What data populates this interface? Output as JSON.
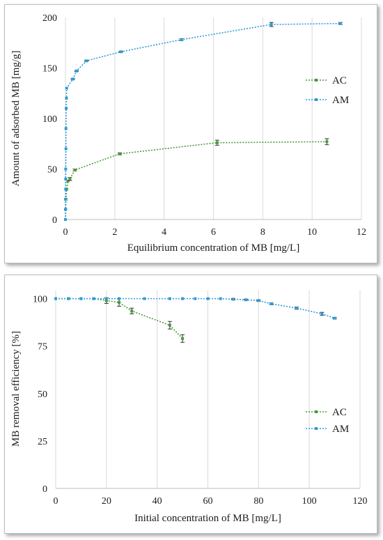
{
  "chart_data": [
    {
      "type": "scatter",
      "xlabel": "Equilibrium  concentration of MB [mg/L]",
      "ylabel": "Amount of adsorbed MB [mg/g]",
      "xlim": [
        0,
        12
      ],
      "ylim": [
        0,
        200
      ],
      "x_ticks": [
        "0",
        "2",
        "4",
        "6",
        "8",
        "10",
        "12"
      ],
      "y_ticks": [
        "0",
        "50",
        "100",
        "150",
        "200"
      ],
      "grid": "vertical",
      "legend_position": "right",
      "series": [
        {
          "name": "AC",
          "color": "#4a9a3c",
          "x": [
            0.0,
            0.01,
            0.02,
            0.05,
            0.1,
            0.18,
            0.38,
            2.2,
            6.15,
            10.6
          ],
          "y": [
            0,
            10,
            20,
            30,
            38,
            40,
            49,
            65,
            76,
            77
          ],
          "err": [
            0,
            0,
            0,
            0,
            0,
            1.5,
            1,
            1,
            2.5,
            3
          ]
        },
        {
          "name": "AM",
          "color": "#2e9bd6",
          "x": [
            0.0,
            0.0,
            0.0,
            0.01,
            0.01,
            0.01,
            0.02,
            0.02,
            0.03,
            0.04,
            0.05,
            0.3,
            0.45,
            0.85,
            2.25,
            4.7,
            8.35,
            11.15
          ],
          "y": [
            0,
            10,
            20,
            30,
            40,
            50,
            70,
            90,
            110,
            120,
            130,
            139,
            147,
            157,
            166,
            178,
            193,
            194
          ],
          "err": [
            0,
            0,
            0,
            0,
            0,
            0,
            0,
            0,
            0,
            0,
            0,
            0.5,
            0.5,
            0.5,
            0.5,
            1,
            2,
            1
          ]
        }
      ]
    },
    {
      "type": "scatter",
      "xlabel": "Initial concentration of MB [mg/L]",
      "ylabel": "MB removal efficiency  [%]",
      "xlim": [
        0,
        120
      ],
      "ylim": [
        0,
        105
      ],
      "x_ticks": [
        "0",
        "20",
        "40",
        "60",
        "80",
        "100",
        "120"
      ],
      "y_ticks": [
        "0",
        "25",
        "50",
        "75",
        "100"
      ],
      "grid": "vertical",
      "legend_position": "right",
      "series": [
        {
          "name": "AC",
          "color": "#4a9a3c",
          "x": [
            0,
            5,
            10,
            15,
            20,
            25,
            30,
            45,
            50
          ],
          "y": [
            100,
            100,
            100,
            100,
            99,
            98,
            93.5,
            86,
            79
          ],
          "err": [
            0,
            0,
            0,
            0,
            1.5,
            2,
            1.5,
            2,
            2
          ]
        },
        {
          "name": "AM",
          "color": "#2e9bd6",
          "x": [
            0,
            5,
            10,
            15,
            20,
            25,
            35,
            45,
            50,
            55,
            60,
            65,
            70,
            75,
            80,
            85,
            95,
            105,
            110
          ],
          "y": [
            100,
            100,
            100,
            100,
            100,
            100,
            100,
            100,
            100,
            100,
            100,
            100,
            99.7,
            99.4,
            99,
            97.3,
            95,
            92,
            89.7
          ],
          "err": [
            0,
            0,
            0,
            0,
            0,
            0,
            0,
            0,
            0,
            0,
            0,
            0,
            0.3,
            0.3,
            0.4,
            0.5,
            0.6,
            0.8,
            0.4
          ]
        }
      ]
    }
  ]
}
